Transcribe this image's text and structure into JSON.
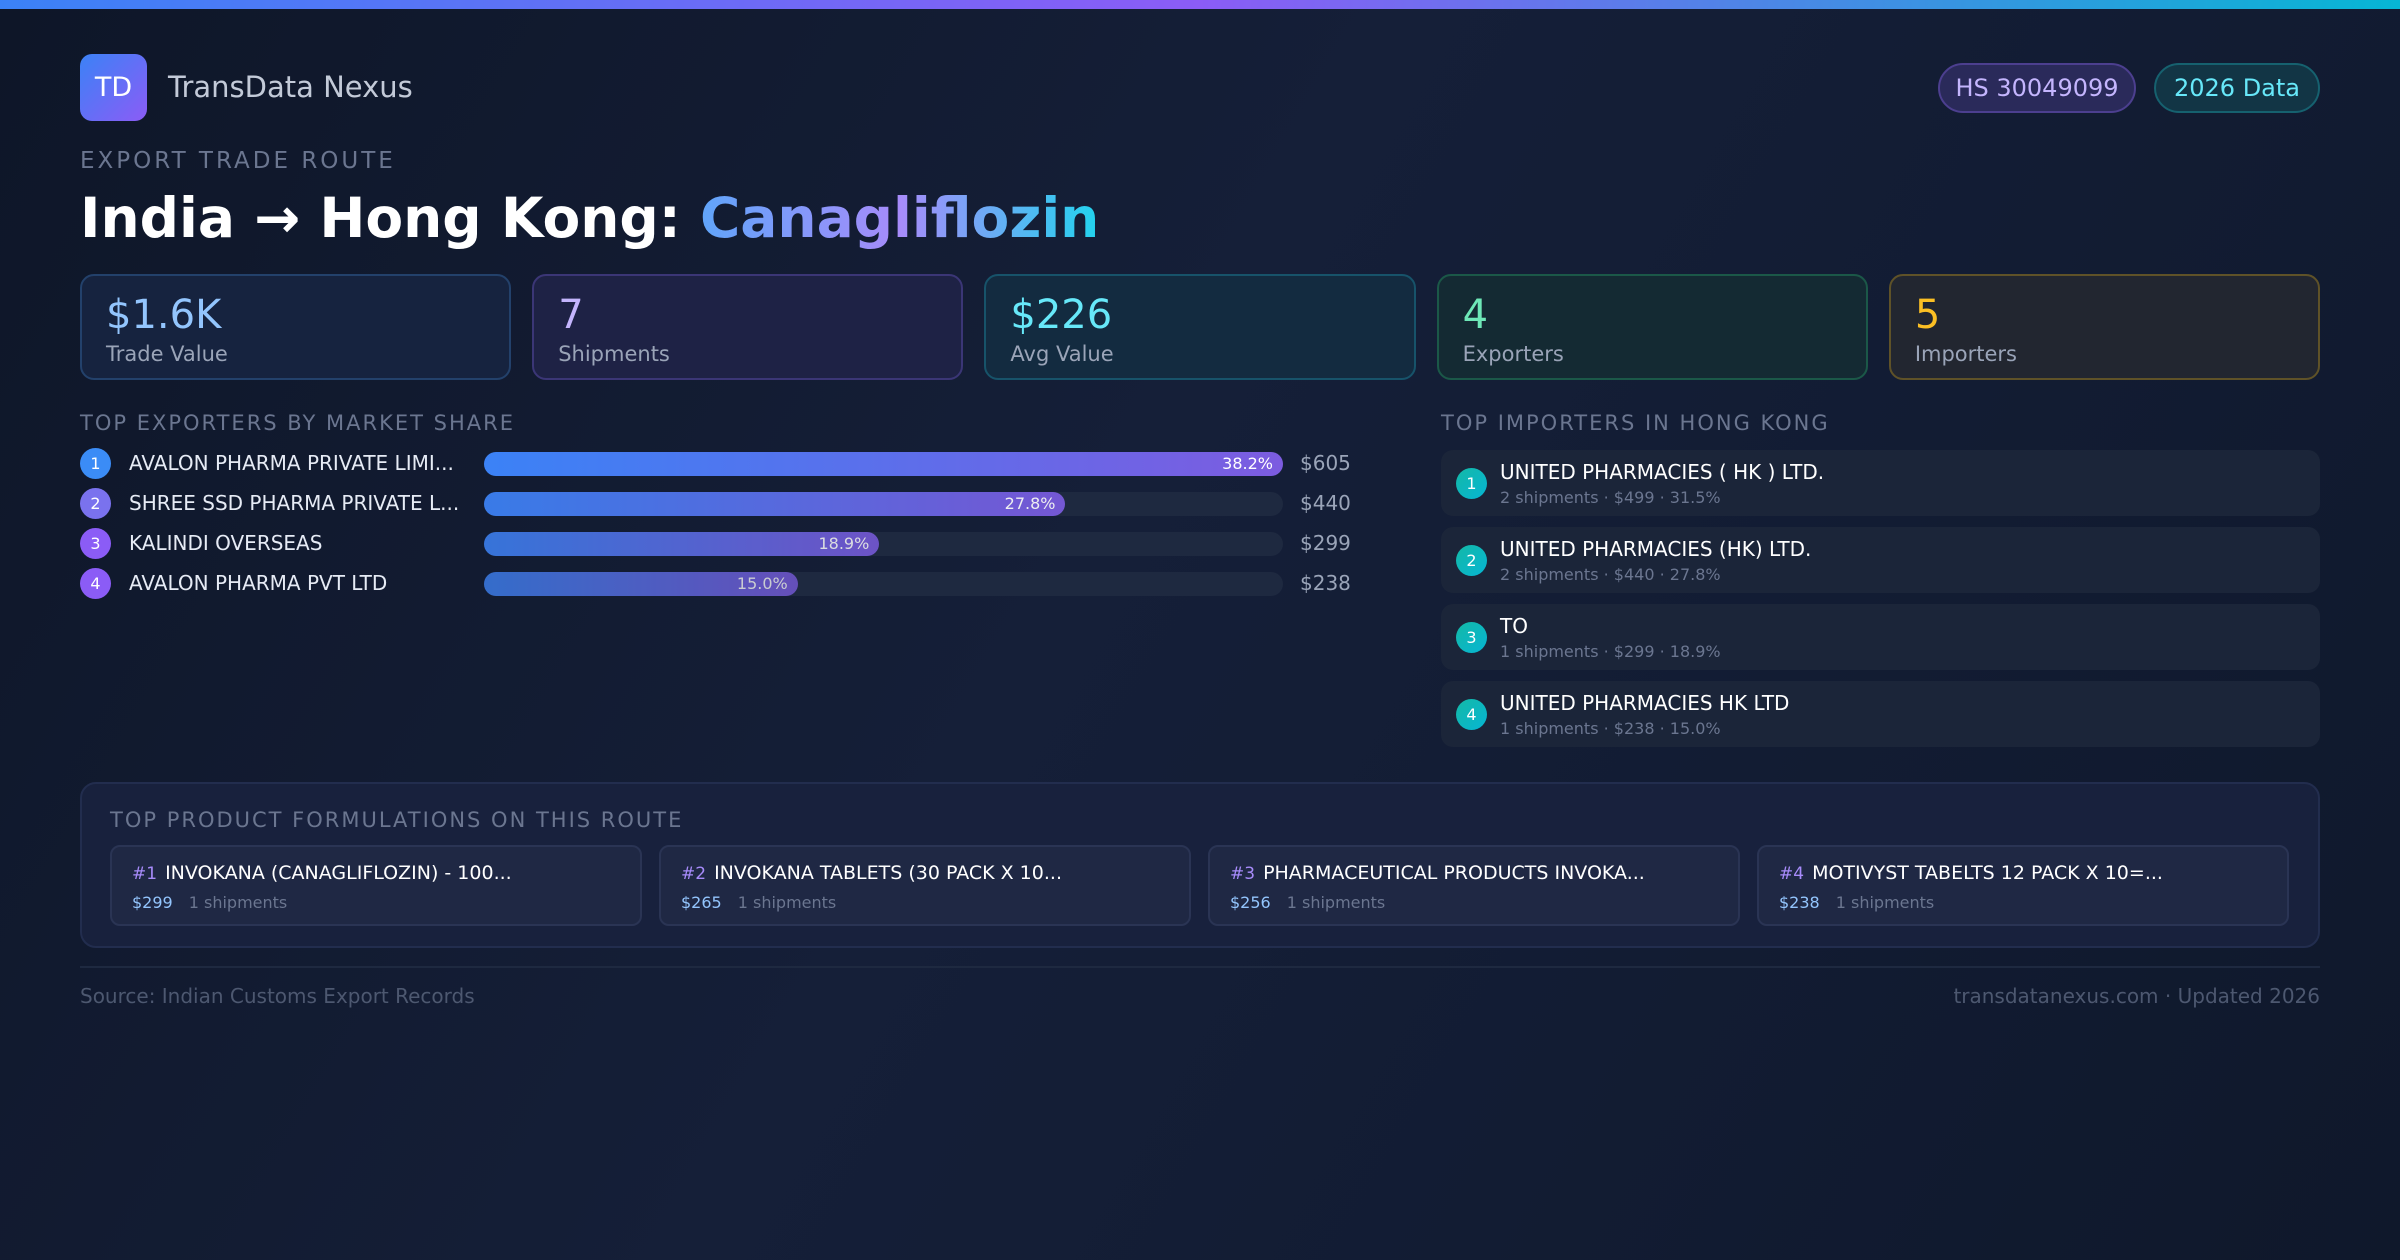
{
  "header": {
    "logo": "TD",
    "brand": "TransData Nexus",
    "badges": [
      "HS 30049099",
      "2026 Data"
    ]
  },
  "route": {
    "eyebrow": "EXPORT TRADE ROUTE",
    "title_prefix": "India → Hong Kong: ",
    "product": "Canagliflozin"
  },
  "stats": [
    {
      "value": "$1.6K",
      "label": "Trade Value",
      "color": "#93c5fd",
      "bg": "#16233f",
      "border": "#23416b"
    },
    {
      "value": "7",
      "label": "Shipments",
      "color": "#c4b5fd",
      "bg": "#1e2245",
      "border": "#3b3676"
    },
    {
      "value": "$226",
      "label": "Avg Value",
      "color": "#67e8f9",
      "bg": "#132b40",
      "border": "#17536a"
    },
    {
      "value": "4",
      "label": "Exporters",
      "color": "#6ee7b7",
      "bg": "#142a33",
      "border": "#1b5848"
    },
    {
      "value": "5",
      "label": "Importers",
      "color": "#fbbf24",
      "bg": "#222630",
      "border": "#5f5228"
    }
  ],
  "exporters": {
    "heading": "TOP EXPORTERS BY MARKET SHARE",
    "items": [
      {
        "rank": "1",
        "name": "AVALON PHARMA PRIVATE LIMI...",
        "share": 38.2,
        "share_label": "38.2%",
        "value": "$605",
        "color": "#3b8cf6"
      },
      {
        "rank": "2",
        "name": "SHREE SSD PHARMA PRIVATE L...",
        "share": 27.8,
        "share_label": "27.8%",
        "value": "$440",
        "color": "#7a72ee"
      },
      {
        "rank": "3",
        "name": "KALINDI OVERSEAS",
        "share": 18.9,
        "share_label": "18.9%",
        "value": "$299",
        "color": "#8b5cf6"
      },
      {
        "rank": "4",
        "name": "AVALON PHARMA PVT LTD",
        "share": 15.0,
        "share_label": "15.0%",
        "value": "$238",
        "color": "#8b5cf6"
      }
    ]
  },
  "importers": {
    "heading": "TOP IMPORTERS IN HONG KONG",
    "items": [
      {
        "rank": "1",
        "name": "UNITED PHARMACIES ( HK ) LTD.",
        "sub": "2 shipments · $499 · 31.5%"
      },
      {
        "rank": "2",
        "name": "UNITED PHARMACIES (HK) LTD.",
        "sub": "2 shipments · $440 · 27.8%"
      },
      {
        "rank": "3",
        "name": "TO",
        "sub": "1 shipments · $299 · 18.9%"
      },
      {
        "rank": "4",
        "name": "UNITED PHARMACIES HK LTD",
        "sub": "1 shipments · $238 · 15.0%"
      }
    ]
  },
  "products": {
    "heading": "TOP PRODUCT FORMULATIONS ON THIS ROUTE",
    "items": [
      {
        "rank": "#1",
        "name": "INVOKANA (CANAGLIFLOZIN) - 100...",
        "price": "$299",
        "shipments": "1 shipments"
      },
      {
        "rank": "#2",
        "name": "INVOKANA TABLETS (30 PACK X 10...",
        "price": "$265",
        "shipments": "1 shipments"
      },
      {
        "rank": "#3",
        "name": "PHARMACEUTICAL PRODUCTS INVOKA...",
        "price": "$256",
        "shipments": "1 shipments"
      },
      {
        "rank": "#4",
        "name": "MOTIVYST TABELTS 12 PACK X 10=...",
        "price": "$238",
        "shipments": "1 shipments"
      }
    ]
  },
  "footer": {
    "source": "Source: Indian Customs Export Records",
    "site": "transdatanexus.com · Updated 2026"
  }
}
